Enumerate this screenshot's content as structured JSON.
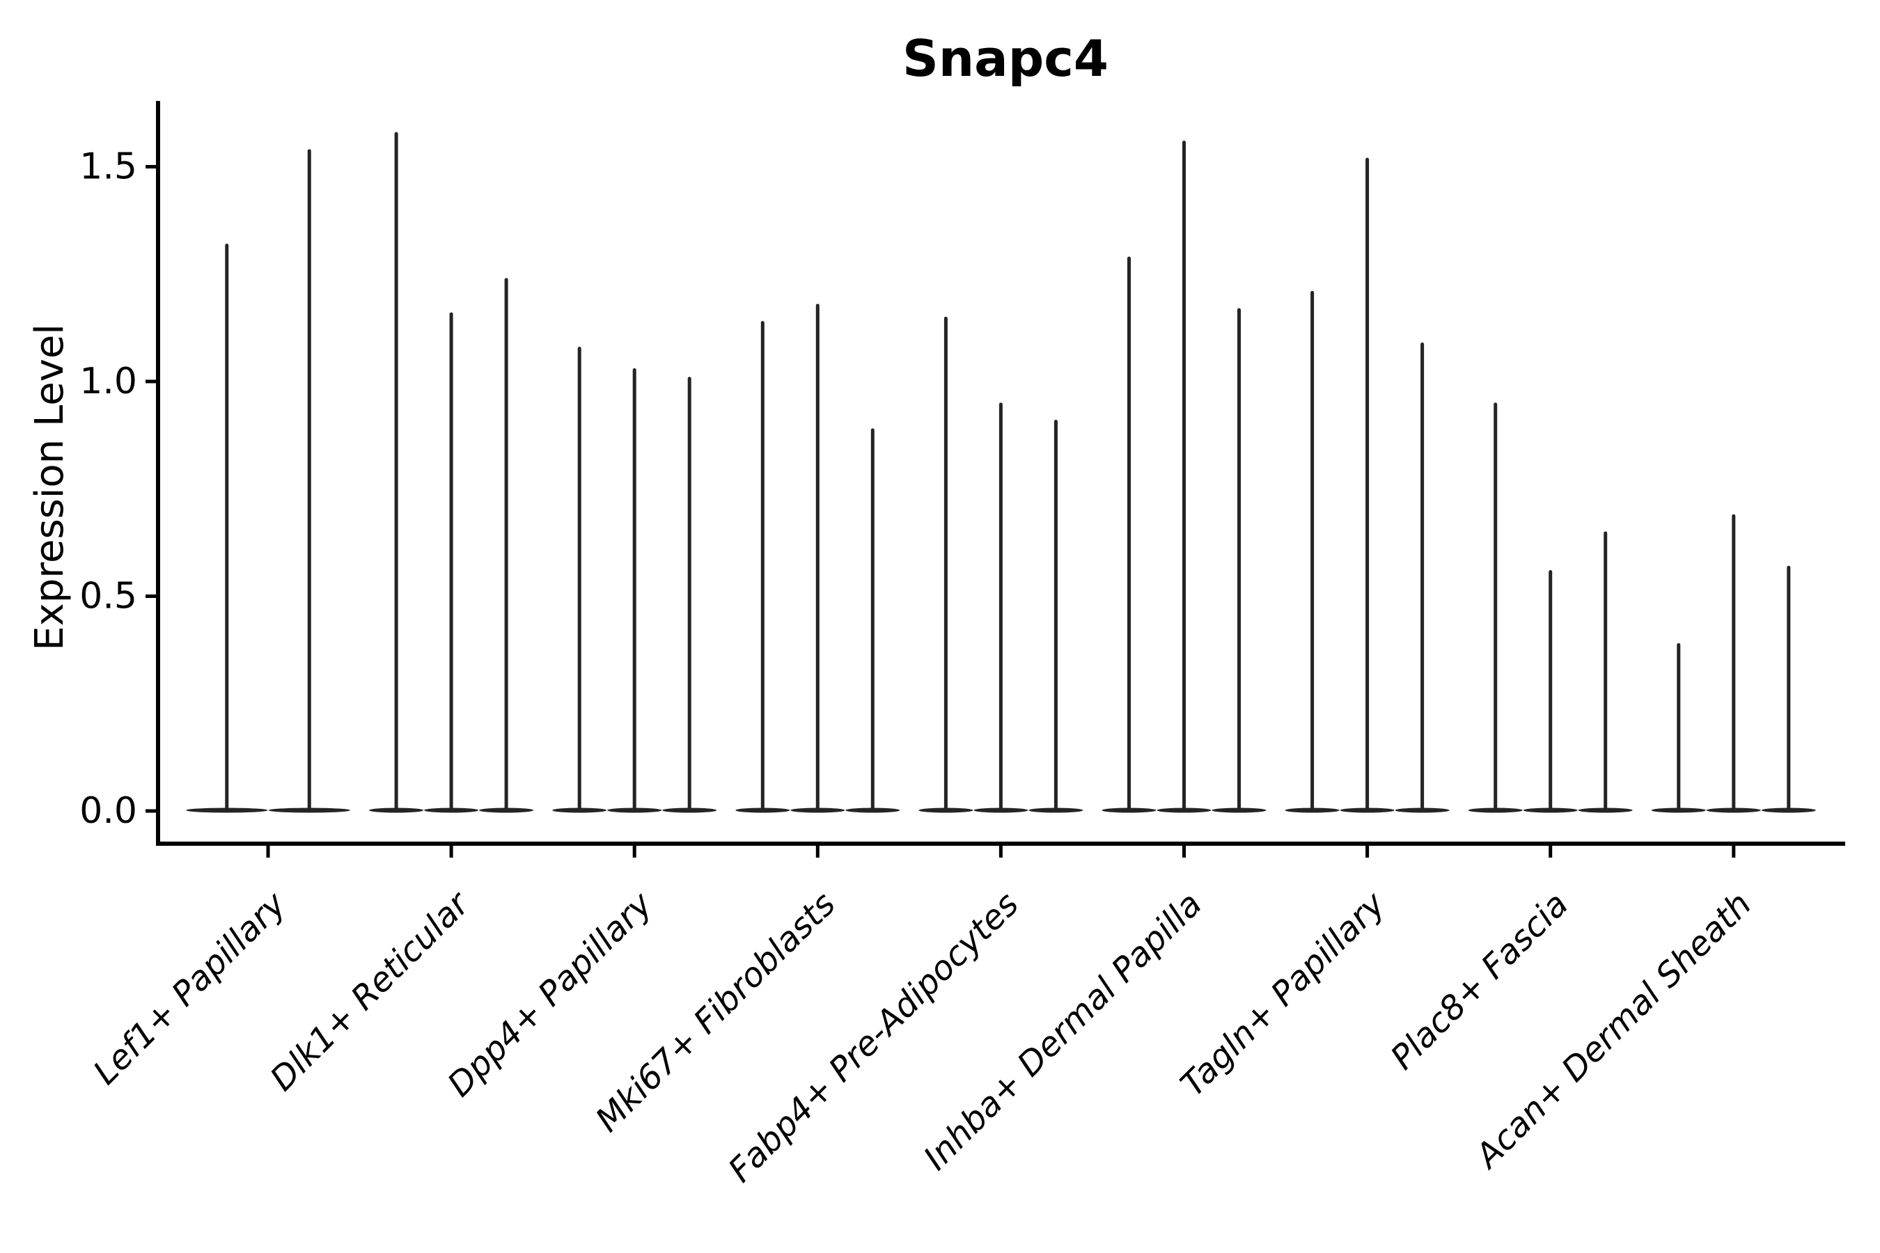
{
  "title": "Snapc4",
  "y_axis": {
    "label": "Expression Level",
    "tick_labels": [
      "0.0",
      "0.5",
      "1.0",
      "1.5"
    ]
  },
  "x_axis": {
    "categories": [
      "Lef1+ Papillary",
      "Dlk1+ Reticular",
      "Dpp4+ Papillary",
      "Mki67+ Fibroblasts",
      "Fabp4+ Pre-Adipocytes",
      "Inhba+ Dermal Papilla",
      "Tagln+ Papillary",
      "Plac8+ Fascia",
      "Acan+ Dermal Sheath"
    ]
  },
  "chart_data": {
    "type": "violin",
    "title": "Snapc4",
    "xlabel": "",
    "ylabel": "Expression Level",
    "ylim": [
      -0.08,
      1.65
    ],
    "yticks": [
      0,
      0.5,
      1.0,
      1.5
    ],
    "ytick_labels": [
      "0.0",
      "0.5",
      "1.0",
      "1.5"
    ],
    "grid": false,
    "legend": "none",
    "categories": [
      "Lef1+ Papillary",
      "Dlk1+ Reticular",
      "Dpp4+ Papillary",
      "Mki67+ Fibroblasts",
      "Fabp4+ Pre-Adipocytes",
      "Inhba+ Dermal Papilla",
      "Tagln+ Papillary",
      "Plac8+ Fascia",
      "Acan+ Dermal Sheath"
    ],
    "series": [
      {
        "category": "Lef1+ Papillary",
        "violin_maxima": [
          1.32,
          1.54
        ]
      },
      {
        "category": "Dlk1+ Reticular",
        "violin_maxima": [
          1.58,
          1.16,
          1.24
        ]
      },
      {
        "category": "Dpp4+ Papillary",
        "violin_maxima": [
          1.08,
          1.03,
          1.01
        ]
      },
      {
        "category": "Mki67+ Fibroblasts",
        "violin_maxima": [
          1.14,
          1.18,
          0.89
        ]
      },
      {
        "category": "Fabp4+ Pre-Adipocytes",
        "violin_maxima": [
          1.15,
          0.95,
          0.91
        ]
      },
      {
        "category": "Inhba+ Dermal Papilla",
        "violin_maxima": [
          1.29,
          1.56,
          1.17
        ]
      },
      {
        "category": "Tagln+ Papillary",
        "violin_maxima": [
          1.21,
          1.52,
          1.09
        ]
      },
      {
        "category": "Plac8+ Fascia",
        "violin_maxima": [
          0.95,
          0.56,
          0.65
        ]
      },
      {
        "category": "Acan+ Dermal Sheath",
        "violin_maxima": [
          0.39,
          0.69,
          0.57
        ]
      }
    ],
    "violin_shape": "needle-with-flat-base-at-zero",
    "violin_color": "#242424",
    "axis_color": "#000000",
    "background_color": "#ffffff"
  }
}
